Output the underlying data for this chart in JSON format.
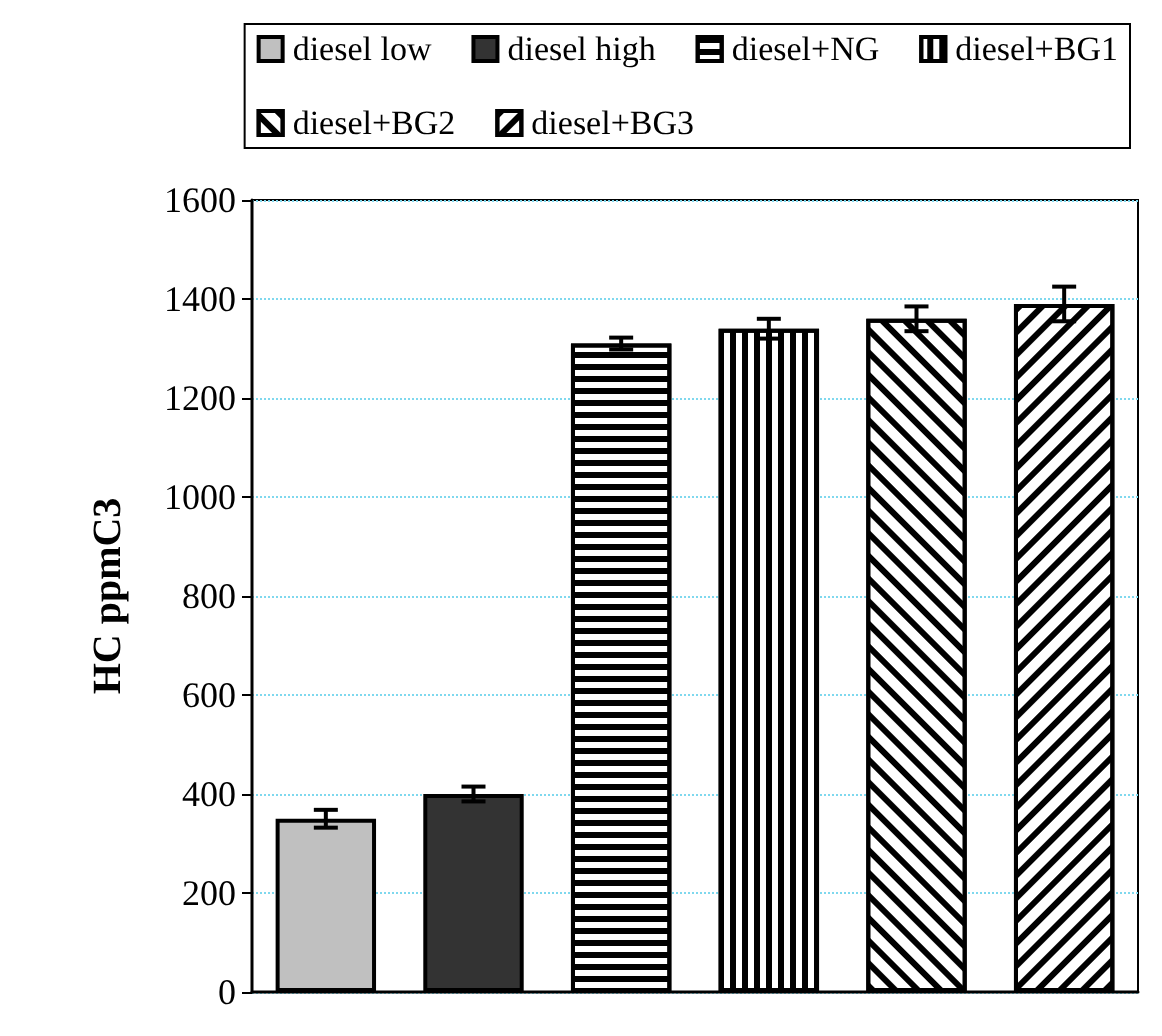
{
  "chart_data": {
    "type": "bar",
    "ylabel": "HC ppmC3",
    "categories": [
      null,
      null,
      null,
      null,
      null,
      null
    ],
    "series": [
      {
        "name": "diesel low",
        "color": "#c0c0c0",
        "values": [
          350,
          null,
          null,
          null,
          null,
          null
        ],
        "errors": [
          18,
          null,
          null,
          null,
          null,
          null
        ]
      },
      {
        "name": "diesel high",
        "color": "#333333",
        "values": [
          null,
          400,
          null,
          null,
          null,
          null
        ],
        "errors": [
          null,
          15,
          null,
          null,
          null,
          null
        ]
      },
      {
        "name": "diesel+NG",
        "color": "#ffffff",
        "values": [
          null,
          null,
          1310,
          null,
          null,
          null
        ],
        "errors": [
          null,
          null,
          12,
          null,
          null,
          null
        ]
      },
      {
        "name": "diesel+BG1",
        "color": "#ffffff",
        "values": [
          null,
          null,
          null,
          1340,
          null,
          null
        ],
        "errors": [
          null,
          null,
          null,
          20,
          null,
          null
        ]
      },
      {
        "name": "diesel+BG2",
        "color": "#ffffff",
        "values": [
          null,
          null,
          null,
          null,
          1360,
          null
        ],
        "errors": [
          null,
          null,
          null,
          null,
          25,
          null
        ]
      },
      {
        "name": "diesel+BG3",
        "color": "#ffffff",
        "values": [
          null,
          null,
          null,
          null,
          null,
          1390
        ],
        "errors": [
          null,
          null,
          null,
          null,
          null,
          35
        ]
      }
    ],
    "stacked": true,
    "ylim": [
      0,
      1600
    ],
    "yticks": [
      0,
      200,
      400,
      600,
      800,
      1000,
      1200,
      1400,
      1600
    ],
    "grid": "y",
    "legend": "top"
  }
}
